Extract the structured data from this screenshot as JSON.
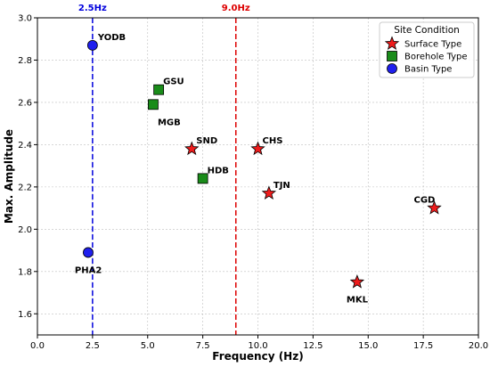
{
  "chart_data": {
    "type": "scatter",
    "xlabel": "Frequency (Hz)",
    "ylabel": "Max. Amplitude",
    "xlim": [
      0,
      20
    ],
    "ylim": [
      1.5,
      3.0
    ],
    "xticks": [
      0.0,
      2.5,
      5.0,
      7.5,
      10.0,
      12.5,
      15.0,
      17.5,
      20.0
    ],
    "xtick_labels": [
      "0.0",
      "2.5",
      "5.0",
      "7.5",
      "10.0",
      "12.5",
      "15.0",
      "17.5",
      "20.0"
    ],
    "yticks": [
      1.6,
      1.8,
      2.0,
      2.2,
      2.4,
      2.6,
      2.8,
      3.0
    ],
    "ytick_labels": [
      "1.6",
      "1.8",
      "2.0",
      "2.2",
      "2.4",
      "2.6",
      "2.8",
      "3.0"
    ],
    "grid": true,
    "legend_title": "Site Condition",
    "legend_position": "top-right",
    "vertical_lines": [
      {
        "x": 2.5,
        "label": "2.5Hz",
        "color": "#0000dd",
        "style": "dashed"
      },
      {
        "x": 9.0,
        "label": "9.0Hz",
        "color": "#dd0000",
        "style": "dashed"
      }
    ],
    "series": [
      {
        "name": "Surface Type",
        "marker": "star",
        "color": "#ee1c1c",
        "points": [
          {
            "label": "SND",
            "x": 7.0,
            "y": 2.38
          },
          {
            "label": "CHS",
            "x": 10.0,
            "y": 2.38
          },
          {
            "label": "TJN",
            "x": 10.5,
            "y": 2.17
          },
          {
            "label": "CGD",
            "x": 18.0,
            "y": 2.1
          },
          {
            "label": "MKL",
            "x": 14.5,
            "y": 1.75
          }
        ]
      },
      {
        "name": "Borehole Type",
        "marker": "square",
        "color": "#1a8c1a",
        "points": [
          {
            "label": "GSU",
            "x": 5.5,
            "y": 2.66
          },
          {
            "label": "MGB",
            "x": 5.25,
            "y": 2.59
          },
          {
            "label": "HDB",
            "x": 7.5,
            "y": 2.24
          }
        ]
      },
      {
        "name": "Basin Type",
        "marker": "circle",
        "color": "#1f1fee",
        "points": [
          {
            "label": "YODB",
            "x": 2.5,
            "y": 2.87
          },
          {
            "label": "PHA2",
            "x": 2.3,
            "y": 1.89
          }
        ]
      }
    ]
  }
}
